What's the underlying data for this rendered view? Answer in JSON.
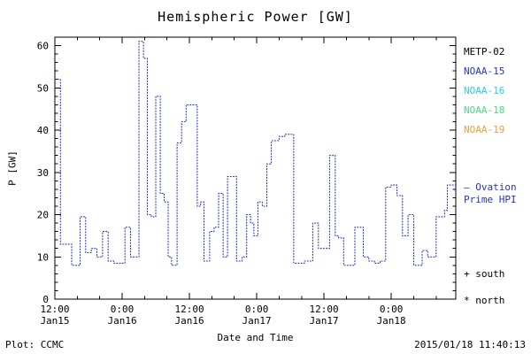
{
  "figure": {
    "footer": {
      "plot_credit": "Plot: CCMC",
      "timestamp": "2015/01/18 11:40:13"
    }
  },
  "legend": {
    "satellites": [
      {
        "name": "METP-02",
        "color": "#000000"
      },
      {
        "name": "NOAA-15",
        "color": "#2233cc"
      },
      {
        "name": "NOAA-16",
        "color": "#2fc9e8"
      },
      {
        "name": "NOAA-18",
        "color": "#4cd97f"
      },
      {
        "name": "NOAA-19",
        "color": "#f29d3d"
      }
    ],
    "model_label_line1": "– Ovation",
    "model_label_line2": "Prime HPI",
    "model_color": "#2233cc",
    "south_marker": "+ south",
    "north_marker": "* north"
  },
  "chart_data": {
    "type": "line",
    "style": "step-dotted",
    "title": "Hemispheric Power [GW]",
    "xlabel": "Date and Time",
    "ylabel": "P [GW]",
    "ylim": [
      0,
      62
    ],
    "yticks": [
      0,
      10,
      20,
      30,
      40,
      50,
      60
    ],
    "xlim": [
      0,
      71.5
    ],
    "x_unit": "hours since 2015-01-15 12:00 UT",
    "xticks": [
      {
        "hours": 0,
        "time": "12:00",
        "date": "Jan15"
      },
      {
        "hours": 12,
        "time": "0:00",
        "date": "Jan16"
      },
      {
        "hours": 24,
        "time": "12:00",
        "date": "Jan16"
      },
      {
        "hours": 36,
        "time": "0:00",
        "date": "Jan17"
      },
      {
        "hours": 48,
        "time": "12:00",
        "date": "Jan17"
      },
      {
        "hours": 60,
        "time": "0:00",
        "date": "Jan18"
      }
    ],
    "legend_position": "right-outside",
    "grid": false,
    "series": [
      {
        "name": "Ovation Prime HPI (NOAA-15)",
        "color": "#2233cc",
        "points": [
          [
            0,
            52
          ],
          [
            1,
            13
          ],
          [
            3,
            8
          ],
          [
            4.5,
            19.5
          ],
          [
            5.5,
            11
          ],
          [
            6.5,
            12
          ],
          [
            7.5,
            10
          ],
          [
            8.5,
            16
          ],
          [
            9.5,
            9
          ],
          [
            10.5,
            8.5
          ],
          [
            12.5,
            17
          ],
          [
            13.5,
            10
          ],
          [
            15,
            61
          ],
          [
            15.8,
            57
          ],
          [
            16.5,
            20
          ],
          [
            17.2,
            19.5
          ],
          [
            18,
            48
          ],
          [
            18.8,
            25
          ],
          [
            19.5,
            23
          ],
          [
            20.2,
            10
          ],
          [
            20.8,
            8
          ],
          [
            21.8,
            37
          ],
          [
            22.6,
            42
          ],
          [
            23.4,
            46
          ],
          [
            25.4,
            22
          ],
          [
            26,
            23
          ],
          [
            26.6,
            9
          ],
          [
            27.6,
            16
          ],
          [
            28.4,
            17
          ],
          [
            29.2,
            25
          ],
          [
            30,
            10
          ],
          [
            30.8,
            29
          ],
          [
            32.4,
            9
          ],
          [
            33.4,
            10
          ],
          [
            34.2,
            20
          ],
          [
            34.9,
            18
          ],
          [
            35.5,
            15
          ],
          [
            36.2,
            23
          ],
          [
            37,
            22
          ],
          [
            37.8,
            32
          ],
          [
            38.6,
            37.5
          ],
          [
            40,
            38.5
          ],
          [
            41,
            39
          ],
          [
            42.6,
            8.5
          ],
          [
            44.5,
            9
          ],
          [
            46,
            18
          ],
          [
            47,
            12
          ],
          [
            49,
            34
          ],
          [
            50,
            15
          ],
          [
            50.6,
            14.5
          ],
          [
            51.5,
            8
          ],
          [
            53.5,
            17
          ],
          [
            55,
            10
          ],
          [
            56,
            9
          ],
          [
            57,
            8.5
          ],
          [
            58,
            9
          ],
          [
            59,
            26.5
          ],
          [
            60,
            27
          ],
          [
            61,
            24.5
          ],
          [
            62,
            15
          ],
          [
            63,
            20
          ],
          [
            64,
            8
          ],
          [
            65.5,
            11.5
          ],
          [
            66.5,
            10
          ],
          [
            68,
            19.5
          ],
          [
            69.5,
            21
          ],
          [
            70,
            27
          ],
          [
            71.5,
            27
          ]
        ]
      }
    ]
  }
}
